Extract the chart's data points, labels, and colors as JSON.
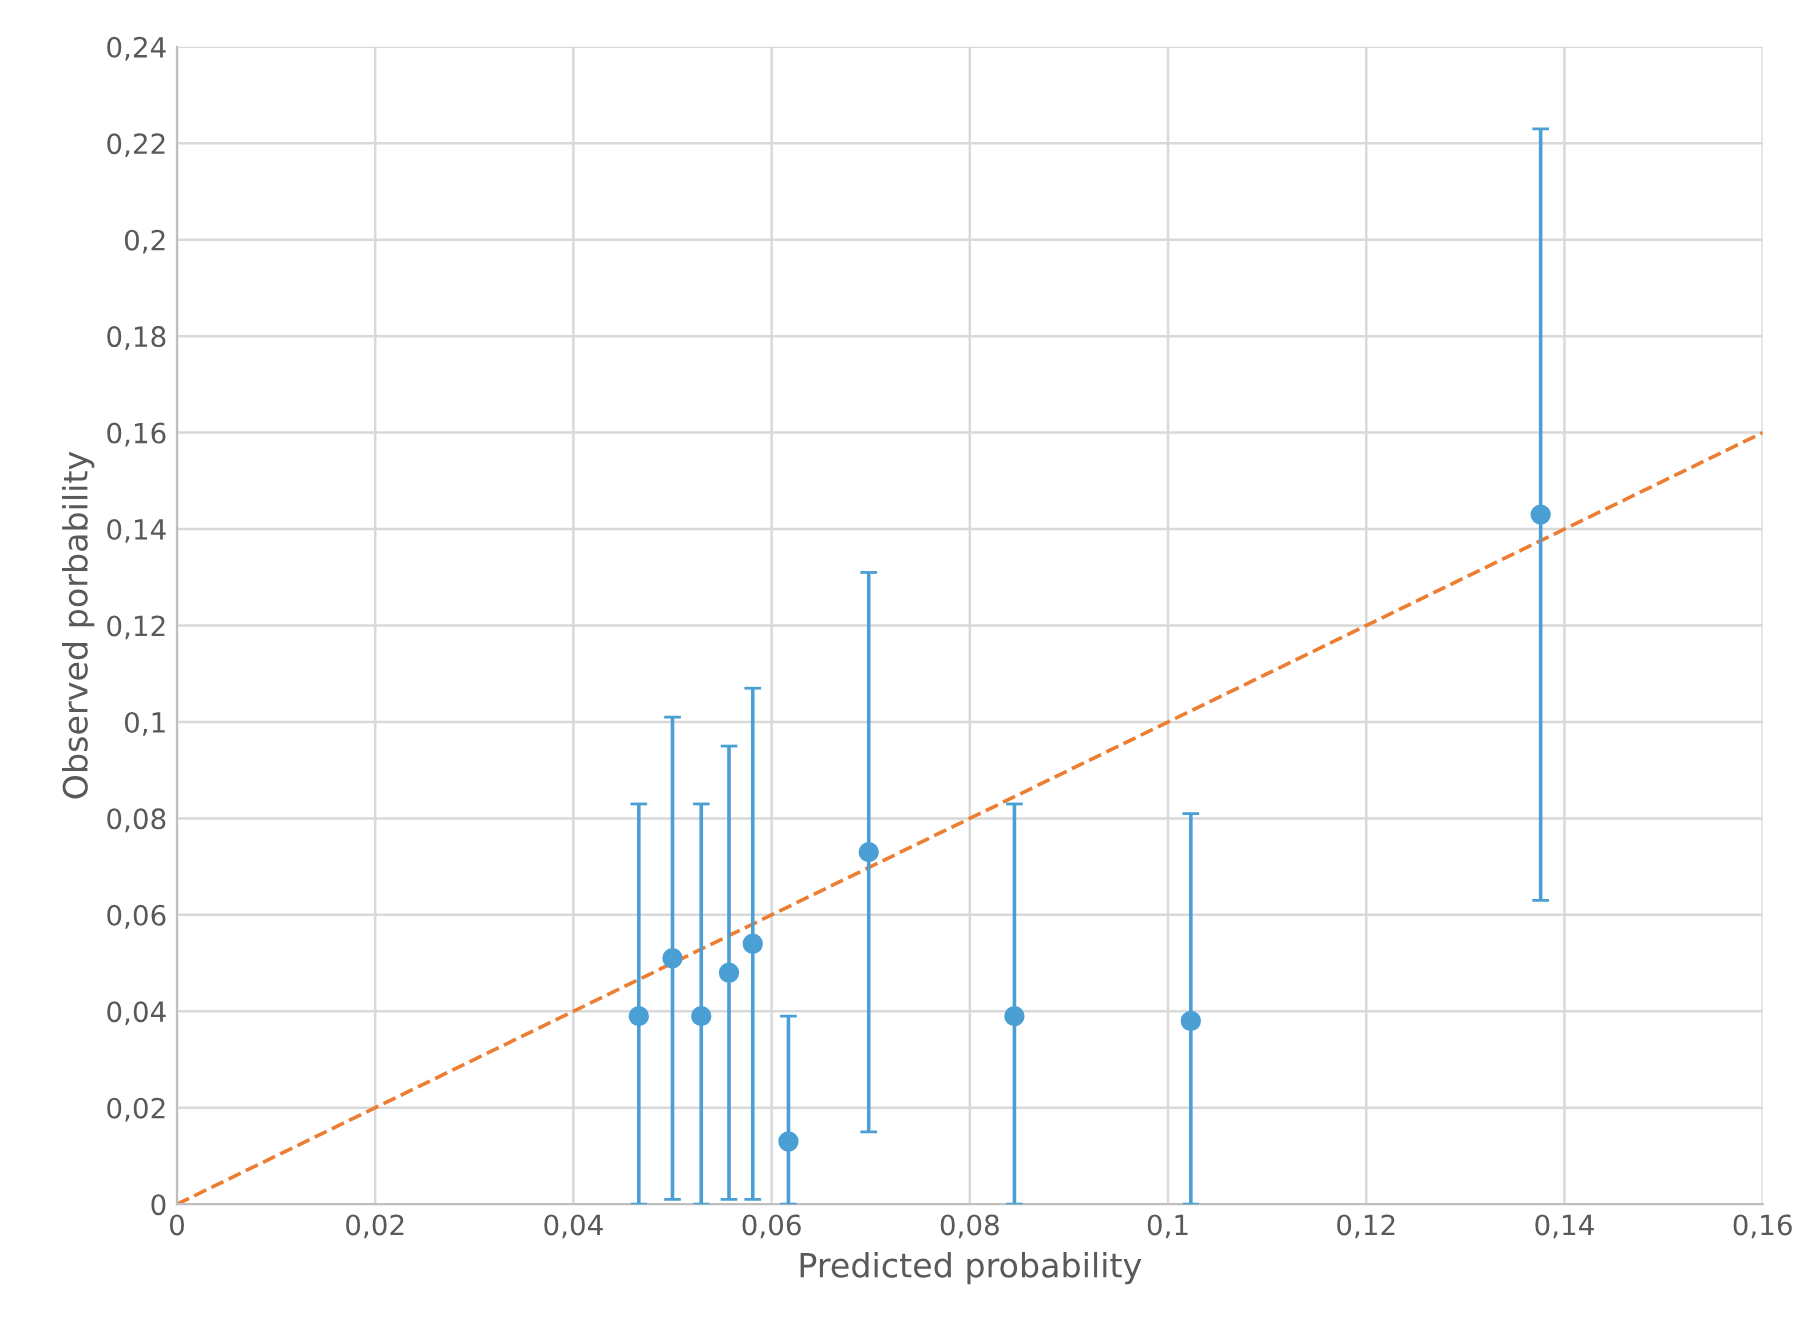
{
  "chart_data": {
    "type": "scatter",
    "xlabel": "Predicted probability",
    "ylabel": "Observed porbability",
    "xlim": [
      0,
      0.16
    ],
    "ylim": [
      0,
      0.24
    ],
    "xticks": [
      {
        "value": 0,
        "label": "0"
      },
      {
        "value": 0.02,
        "label": "0,02"
      },
      {
        "value": 0.04,
        "label": "0,04"
      },
      {
        "value": 0.06,
        "label": "0,06"
      },
      {
        "value": 0.08,
        "label": "0,08"
      },
      {
        "value": 0.1,
        "label": "0,1"
      },
      {
        "value": 0.12,
        "label": "0,12"
      },
      {
        "value": 0.14,
        "label": "0,14"
      },
      {
        "value": 0.16,
        "label": "0,16"
      }
    ],
    "yticks": [
      {
        "value": 0,
        "label": "0"
      },
      {
        "value": 0.02,
        "label": "0,02"
      },
      {
        "value": 0.04,
        "label": "0,04"
      },
      {
        "value": 0.06,
        "label": "0,06"
      },
      {
        "value": 0.08,
        "label": "0,08"
      },
      {
        "value": 0.1,
        "label": "0,1"
      },
      {
        "value": 0.12,
        "label": "0,12"
      },
      {
        "value": 0.14,
        "label": "0,14"
      },
      {
        "value": 0.16,
        "label": "0,16"
      },
      {
        "value": 0.18,
        "label": "0,18"
      },
      {
        "value": 0.2,
        "label": "0,2"
      },
      {
        "value": 0.22,
        "label": "0,22"
      },
      {
        "value": 0.24,
        "label": "0,24"
      }
    ],
    "grid": true,
    "legend": false,
    "series": [
      {
        "color": "#4a9fd4",
        "marker": "circle",
        "x": [
          0.0466,
          0.05,
          0.0529,
          0.0557,
          0.0581,
          0.0617,
          0.0698,
          0.0845,
          0.1023,
          0.1376
        ],
        "values": [
          0.039,
          0.051,
          0.039,
          0.048,
          0.054,
          0.013,
          0.073,
          0.039,
          0.038,
          0.143
        ],
        "errors": [
          [
            0,
            0.083
          ],
          [
            0.001,
            0.101
          ],
          [
            0,
            0.083
          ],
          [
            0.001,
            0.095
          ],
          [
            0.001,
            0.107
          ],
          [
            0,
            0.039
          ],
          [
            0.015,
            0.131
          ],
          [
            0,
            0.083
          ],
          [
            0,
            0.081
          ],
          [
            0.063,
            0.223
          ]
        ]
      },
      {
        "type": "line",
        "color": "#ed7d31",
        "line_style": "dashed",
        "marker": "none",
        "x": [
          0,
          0.16
        ],
        "values": [
          0,
          0.16
        ]
      }
    ]
  }
}
